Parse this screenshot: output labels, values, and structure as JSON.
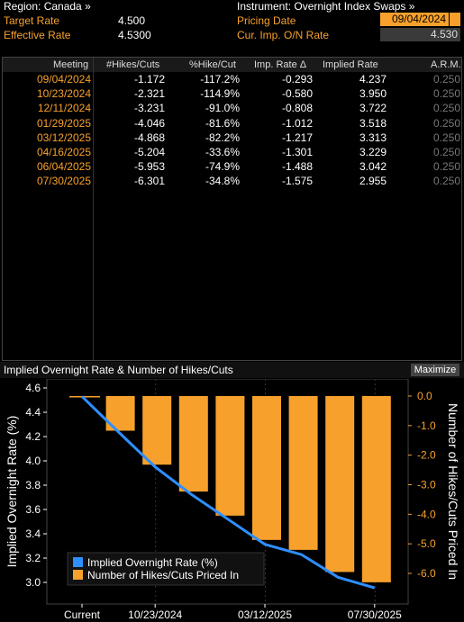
{
  "header": {
    "region_label": "Region: Canada »",
    "instrument_label": "Instrument: Overnight Index Swaps »",
    "target_rate_label": "Target Rate",
    "target_rate_value": "4.500",
    "effective_rate_label": "Effective Rate",
    "effective_rate_value": "4.5300",
    "pricing_date_label": "Pricing Date",
    "pricing_date_value": "09/04/2024",
    "cur_imp_label": "Cur. Imp. O/N Rate",
    "cur_imp_value": "4.530"
  },
  "table": {
    "columns": [
      "Meeting",
      "#Hikes/Cuts",
      "%Hike/Cut",
      "Imp. Rate Δ",
      "Implied Rate",
      "A.R.M."
    ],
    "rows": [
      [
        "09/04/2024",
        "-1.172",
        "-117.2%",
        "-0.293",
        "4.237",
        "0.250"
      ],
      [
        "10/23/2024",
        "-2.321",
        "-114.9%",
        "-0.580",
        "3.950",
        "0.250"
      ],
      [
        "12/11/2024",
        "-3.231",
        "-91.0%",
        "-0.808",
        "3.722",
        "0.250"
      ],
      [
        "01/29/2025",
        "-4.046",
        "-81.6%",
        "-1.012",
        "3.518",
        "0.250"
      ],
      [
        "03/12/2025",
        "-4.868",
        "-82.2%",
        "-1.217",
        "3.313",
        "0.250"
      ],
      [
        "04/16/2025",
        "-5.204",
        "-33.6%",
        "-1.301",
        "3.229",
        "0.250"
      ],
      [
        "06/04/2025",
        "-5.953",
        "-74.9%",
        "-1.488",
        "3.042",
        "0.250"
      ],
      [
        "07/30/2025",
        "-6.301",
        "-34.8%",
        "-1.575",
        "2.955",
        "0.250"
      ]
    ]
  },
  "chart_title": "Implied Overnight Rate & Number of Hikes/Cuts",
  "maximize_label": "Maximize",
  "chart_data": {
    "type": "bar",
    "categories": [
      "Current",
      "09/04/2024",
      "10/23/2024",
      "12/11/2024",
      "01/29/2025",
      "03/12/2025",
      "04/16/2025",
      "06/04/2025",
      "07/30/2025"
    ],
    "x_tick_labels": [
      "Current",
      "10/23/2024",
      "03/12/2025",
      "07/30/2025"
    ],
    "series": [
      {
        "name": "Implied Overnight Rate (%)",
        "type": "line",
        "axis": "left",
        "color": "#2e8fff",
        "values": [
          4.53,
          4.237,
          3.95,
          3.722,
          3.518,
          3.313,
          3.229,
          3.042,
          2.955
        ]
      },
      {
        "name": "Number of Hikes/Cuts Priced In",
        "type": "bar",
        "axis": "right",
        "color": "#f7a12c",
        "values": [
          0,
          -1.172,
          -2.321,
          -3.231,
          -4.046,
          -4.868,
          -5.204,
          -5.953,
          -6.301
        ]
      }
    ],
    "ylabel_left": "Implied Overnight Rate (%)",
    "ylabel_right": "Number of Hikes/Cuts Priced In",
    "ylim_left": [
      2.9,
      4.65
    ],
    "yticks_left": [
      "4.6",
      "4.4",
      "4.2",
      "4.0",
      "3.8",
      "3.6",
      "3.4",
      "3.2",
      "3.0"
    ],
    "ylim_right": [
      -6.5,
      0.4
    ],
    "yticks_right": [
      "0.0",
      "-1.0",
      "-2.0",
      "-3.0",
      "-4.0",
      "-5.0",
      "-6.0"
    ],
    "legend_position": "bottom-left",
    "grid": true
  }
}
